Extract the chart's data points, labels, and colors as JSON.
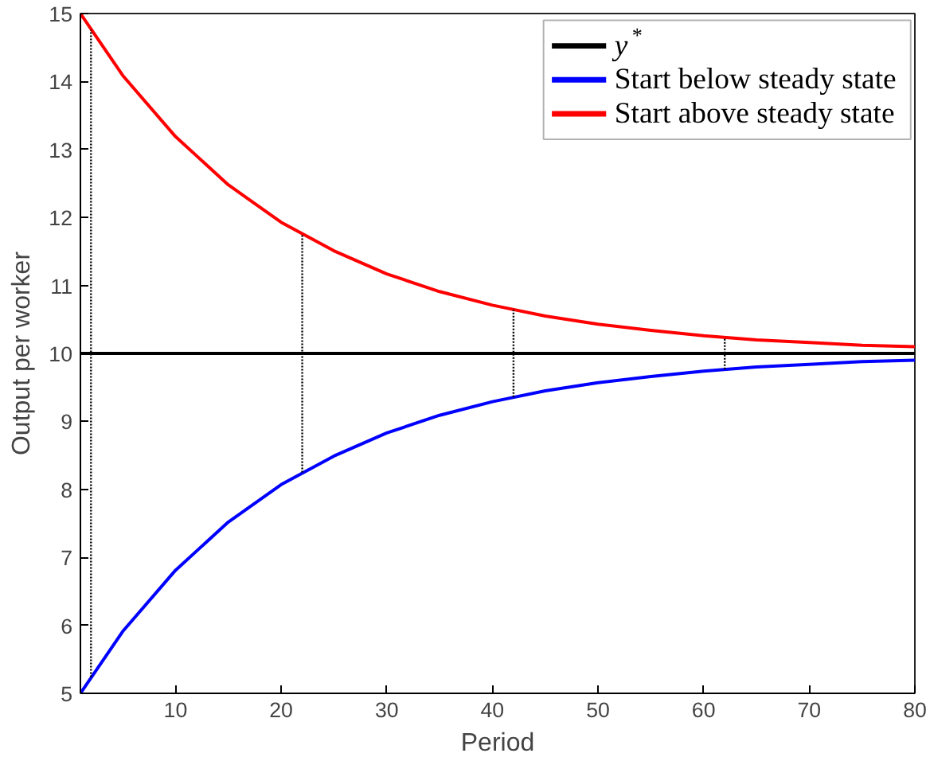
{
  "chart_data": {
    "type": "line",
    "xlabel": "Period",
    "ylabel": "Output per worker",
    "xlim": [
      1,
      80
    ],
    "ylim": [
      5,
      15
    ],
    "xticks": [
      10,
      20,
      30,
      40,
      50,
      60,
      70,
      80
    ],
    "yticks": [
      5,
      6,
      7,
      8,
      9,
      10,
      11,
      12,
      13,
      14,
      15
    ],
    "grid": false,
    "legend": "top right",
    "marker": "none",
    "line_style": "solid",
    "series": [
      {
        "name": "y$^{*}$",
        "color": "#000000",
        "x": [
          1,
          80
        ],
        "values": [
          10,
          10
        ]
      },
      {
        "name": "Start below steady state",
        "color": "#0000ff",
        "x": [
          1,
          5,
          10,
          15,
          20,
          25,
          30,
          35,
          40,
          45,
          50,
          55,
          60,
          65,
          70,
          75,
          80
        ],
        "values": [
          5,
          5.91,
          6.81,
          7.52,
          8.07,
          8.49,
          8.83,
          9.09,
          9.29,
          9.45,
          9.57,
          9.66,
          9.74,
          9.8,
          9.84,
          9.88,
          9.9
        ]
      },
      {
        "name": "Start above steady state",
        "color": "#ff0000",
        "x": [
          1,
          5,
          10,
          15,
          20,
          25,
          30,
          35,
          40,
          45,
          50,
          55,
          60,
          65,
          70,
          75,
          80
        ],
        "values": [
          15,
          14.09,
          13.19,
          12.48,
          11.93,
          11.51,
          11.17,
          10.91,
          10.71,
          10.55,
          10.43,
          10.34,
          10.26,
          10.2,
          10.16,
          10.12,
          10.1
        ]
      },
      {
        "color": "#000000",
        "line_style": "dotted",
        "x": [
          2,
          2
        ],
        "values": [
          5.24,
          14.76
        ]
      },
      {
        "color": "#000000",
        "line_style": "dotted",
        "x": [
          22,
          22
        ],
        "values": [
          8.25,
          11.75
        ]
      },
      {
        "color": "#000000",
        "line_style": "dotted",
        "x": [
          42,
          42
        ],
        "values": [
          9.36,
          10.64
        ]
      },
      {
        "color": "#000000",
        "line_style": "dotted",
        "x": [
          62,
          62
        ],
        "values": [
          9.77,
          10.23
        ]
      }
    ]
  }
}
